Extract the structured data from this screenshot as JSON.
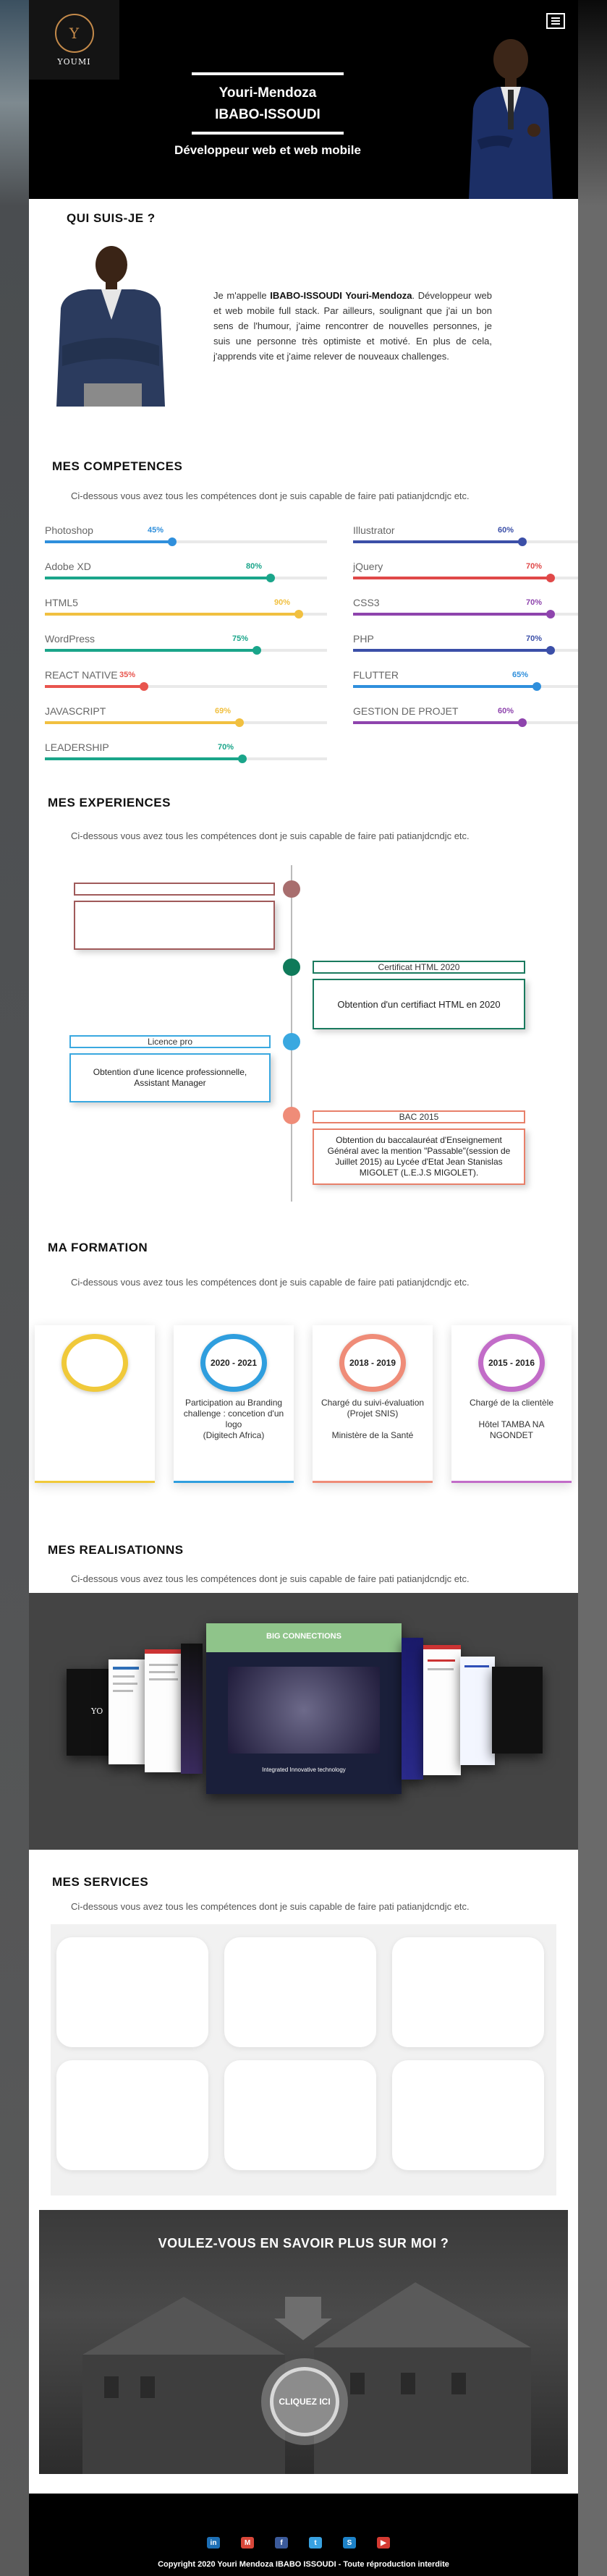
{
  "header": {
    "logo_text": "YOUMI",
    "name_line1": "Youri-Mendoza",
    "name_line2": "IBABO-ISSOUDI",
    "role": "Développeur web et web mobile"
  },
  "about": {
    "title": "QUI SUIS-JE ?",
    "text_intro": "Je m'appelle ",
    "text_name": "IBABO-ISSOUDI Youri-Mendoza",
    "text_body": ". Développeur web et web mobile full stack.  Par ailleurs, soulignant que j'ai un bon sens de l'humour, j'aime rencontrer de nouvelles personnes, je suis une personne très optimiste et motivé. En plus de cela, j'apprends vite et j'aime relever de nouveaux challenges."
  },
  "skills": {
    "title": "MES COMPETENCES",
    "subtitle": "Ci-dessous vous avez tous les compétences dont je suis capable de faire pati patianjdcndjc etc.",
    "left": [
      {
        "name": "Photoshop",
        "pct": "45%",
        "value": 45,
        "color": "#2f8fdc"
      },
      {
        "name": "Adobe XD",
        "pct": "80%",
        "value": 80,
        "color": "#1aa58a"
      },
      {
        "name": "HTML5",
        "pct": "90%",
        "value": 90,
        "color": "#f1c040"
      },
      {
        "name": "WordPress",
        "pct": "75%",
        "value": 75,
        "color": "#1aa58a"
      },
      {
        "name": "REACT NATIVE",
        "pct": "35%",
        "value": 35,
        "color": "#e8554e"
      },
      {
        "name": "JAVASCRIPT",
        "pct": "69%",
        "value": 69,
        "color": "#f1c040"
      },
      {
        "name": "LEADERSHIP",
        "pct": "70%",
        "value": 70,
        "color": "#1aa58a"
      }
    ],
    "right": [
      {
        "name": "Illustrator",
        "pct": "60%",
        "value": 60,
        "color": "#3b4fa8"
      },
      {
        "name": "jQuery",
        "pct": "70%",
        "value": 70,
        "color": "#e04848"
      },
      {
        "name": "CSS3",
        "pct": "70%",
        "value": 70,
        "color": "#8e44ad"
      },
      {
        "name": "PHP",
        "pct": "70%",
        "value": 70,
        "color": "#3b4fa8"
      },
      {
        "name": "FLUTTER",
        "pct": "65%",
        "value": 65,
        "color": "#2f8fdc"
      },
      {
        "name": "GESTION DE PROJET",
        "pct": "60%",
        "value": 60,
        "color": "#8e44ad"
      }
    ]
  },
  "experiences": {
    "title": "MES EXPERIENCES",
    "subtitle": "Ci-dessous vous avez tous les compétences dont je suis capable de faire pati patianjdcndjc etc.",
    "items": [
      {
        "label": "",
        "text": "",
        "color": "#a05a5a",
        "dot": "#a86e6e"
      },
      {
        "label": "Certificat HTML 2020",
        "text": "Obtention d'un certifiact HTML en 2020",
        "color": "#1a7a5e",
        "dot": "#0f7a5a"
      },
      {
        "label": "Licence pro",
        "text": "Obtention d'une licence professionnelle, Assistant Manager",
        "color": "#3aa8e0",
        "dot": "#3aa8e0"
      },
      {
        "label": "BAC 2015",
        "text": "Obtention du baccalauréat d'Enseignement Général avec la mention \"Passable\"(session de Juillet 2015) au Lycée d'Etat Jean Stanislas MIGOLET (L.E.J.S MIGOLET).",
        "color": "#e8806a",
        "dot": "#ef8c78"
      }
    ]
  },
  "formation": {
    "title": "MA FORMATION",
    "subtitle": "Ci-dessous vous avez tous les compétences dont je suis capable de faire pati patianjdcndjc etc.",
    "cards": [
      {
        "year": "",
        "text": "",
        "color": "#f0c93a"
      },
      {
        "year": "2020 - 2021",
        "text": "Participation au Branding challenge : concetion d'un logo\n(Digitech Africa)",
        "color": "#2f9ede"
      },
      {
        "year": "2018 - 2019",
        "text": "Chargé du suivi-évaluation (Projet SNIS)\n\nMinistère de la Santé",
        "color": "#ef8c78"
      },
      {
        "year": "2015 - 2016",
        "text": "Chargé de la clientèle\n\nHôtel TAMBA NA NGONDET",
        "color": "#c26cc8"
      }
    ]
  },
  "realisations": {
    "title": "MES REALISATIONNS",
    "subtitle": "Ci-dessous vous avez tous les compétences dont je suis capable de faire pati patianjdcndjc etc.",
    "center_slide_title": "BIG CONNECTIONS",
    "center_slide_caption": "Integrated Innovative technology"
  },
  "services": {
    "title": "MES SERVICES",
    "subtitle": "Ci-dessous vous avez tous les compétences dont je suis capable de faire pati patianjdcndjc etc."
  },
  "cta": {
    "title": "VOULEZ-VOUS EN SAVOIR PLUS SUR MOI ?",
    "button": "CLIQUEZ ICI"
  },
  "footer": {
    "socials": [
      {
        "icon": "linkedin-icon",
        "glyph": "in",
        "color": "#1d6fb5"
      },
      {
        "icon": "gmail-icon",
        "glyph": "M",
        "color": "#d9473a"
      },
      {
        "icon": "facebook-icon",
        "glyph": "f",
        "color": "#3b5a9a"
      },
      {
        "icon": "twitter-icon",
        "glyph": "t",
        "color": "#38a1e0"
      },
      {
        "icon": "skype-icon",
        "glyph": "S",
        "color": "#1d82c8"
      },
      {
        "icon": "youtube-icon",
        "glyph": "▶",
        "color": "#d43a32"
      }
    ],
    "copyright": "Copyright 2020 Youri Mendoza IBABO ISSOUDI - Toute réproduction interdite"
  }
}
